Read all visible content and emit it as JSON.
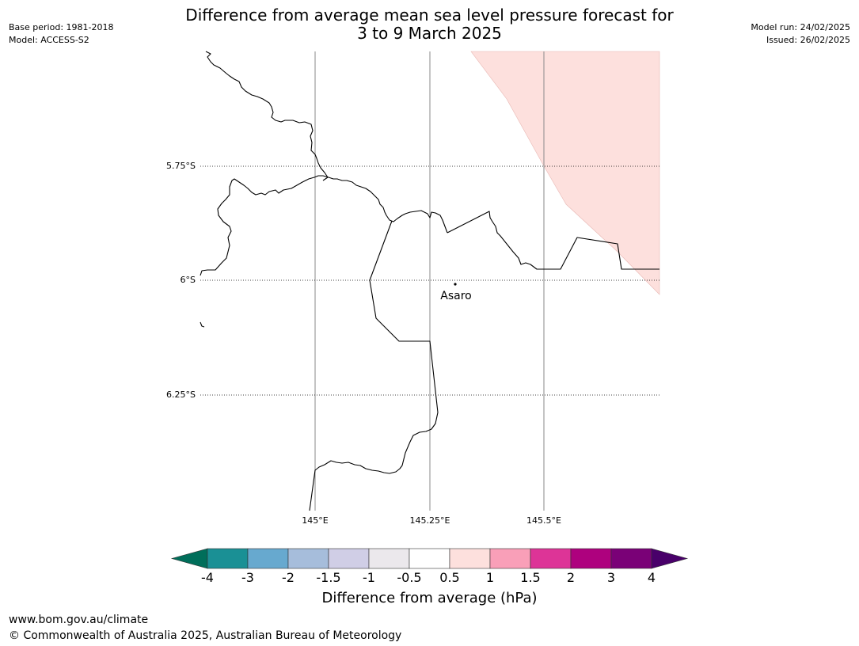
{
  "title_line1": "Difference from average mean sea level pressure forecast for",
  "title_line2": "3 to 9 March 2025",
  "meta_left": {
    "base_period": "Base period: 1981-2018",
    "model": "Model: ACCESS-S2"
  },
  "meta_right": {
    "model_run": "Model run: 24/02/2025",
    "issued": "Issued: 26/02/2025"
  },
  "map": {
    "lat_labels": [
      "5.75°S",
      "6°S",
      "6.25°S"
    ],
    "lon_labels": [
      "145°E",
      "145.25°E",
      "145.5°E"
    ],
    "place": "Asaro"
  },
  "colorbar": {
    "label": "Difference from average (hPa)",
    "ticks": [
      "-4",
      "-3",
      "-2",
      "-1.5",
      "-1",
      "-0.5",
      "0.5",
      "1",
      "1.5",
      "2",
      "3",
      "4"
    ],
    "colors": {
      "below_min": "#006e5a",
      "bins": [
        "#1a9095",
        "#67a9cf",
        "#a6bddb",
        "#d0cee6",
        "#ebe8ec",
        "#ffffff",
        "#fde0dd",
        "#f99fb8",
        "#dd3497",
        "#ae017e",
        "#7a0177"
      ],
      "above_max": "#49006a"
    }
  },
  "footer": {
    "url": "www.bom.gov.au/climate",
    "copyright": "© Commonwealth of Australia 2025, Australian Bureau of Meteorology"
  }
}
